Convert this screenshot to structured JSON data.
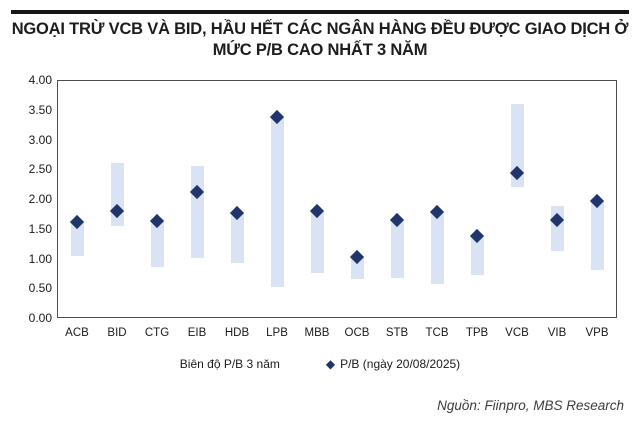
{
  "header": {
    "title_line1": "NGOẠI TRỪ VCB VÀ BID, HẦU HẾT CÁC NGÂN HÀNG ĐỀU ĐƯỢC GIAO DỊCH Ở",
    "title_line2": "MỨC P/B CAO NHẤT 3 NĂM"
  },
  "chart_data": {
    "type": "bar",
    "subtype": "floating-range-bars-with-diamond-point-markers",
    "categories": [
      "ACB",
      "BID",
      "CTG",
      "EIB",
      "HDB",
      "LPB",
      "MBB",
      "OCB",
      "STB",
      "TCB",
      "TPB",
      "VCB",
      "VIB",
      "VPB"
    ],
    "series": [
      {
        "name": "Biên độ P/B 3 năm",
        "style": "range-bar",
        "low": [
          1.05,
          1.55,
          0.85,
          1.0,
          0.92,
          0.52,
          0.75,
          0.65,
          0.67,
          0.57,
          0.72,
          2.2,
          1.12,
          0.8
        ],
        "high": [
          1.65,
          2.6,
          1.67,
          2.55,
          1.78,
          3.38,
          1.8,
          1.05,
          1.67,
          1.8,
          1.4,
          3.6,
          1.88,
          1.97
        ]
      },
      {
        "name": "P/B (ngày 20/08/2025)",
        "style": "diamond-point",
        "values": [
          1.62,
          1.8,
          1.63,
          2.12,
          1.76,
          3.38,
          1.79,
          1.02,
          1.65,
          1.78,
          1.38,
          2.43,
          1.65,
          1.96
        ]
      }
    ],
    "title": "NGOẠI TRỪ VCB VÀ BID, HẦU HẾT CÁC NGÂN HÀNG ĐỀU ĐƯỢC GIAO DỊCH Ở MỨC P/B CAO NHẤT 3 NĂM",
    "xlabel": "",
    "ylabel": "",
    "ylim": [
      0,
      4
    ],
    "ytick_step": 0.5,
    "ytick_format": "2dp",
    "grid": "off",
    "legend_position": "bottom",
    "colors": {
      "range_bar": "#dae3f3",
      "point": "#20356b"
    }
  },
  "legend": {
    "range_label": "Biên độ P/B 3 năm",
    "point_marker": "◆",
    "point_label": "P/B (ngày 20/08/2025)"
  },
  "footer": {
    "source": "Nguồn: Fiinpro, MBS Research"
  }
}
